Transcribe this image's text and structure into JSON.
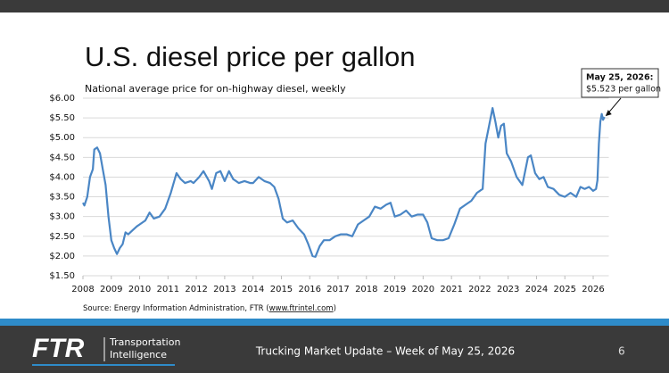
{
  "chart_data": {
    "type": "line",
    "title": "U.S. diesel price per gallon",
    "subtitle": "National average price for on-highway diesel, weekly",
    "source": "Source: Energy Information Administration, FTR (",
    "source_link": "www.ftrintel.com",
    "source_end": ")",
    "annotation": {
      "date": "May 25, 2026:",
      "text": "$5.523 per gallon",
      "x": 2026.4,
      "y": 5.523
    },
    "x": [
      2008.0,
      2008.05,
      2008.15,
      2008.25,
      2008.35,
      2008.4,
      2008.5,
      2008.6,
      2008.7,
      2008.8,
      2008.9,
      2009.0,
      2009.1,
      2009.2,
      2009.3,
      2009.4,
      2009.5,
      2009.6,
      2009.75,
      2009.9,
      2010.0,
      2010.2,
      2010.35,
      2010.5,
      2010.7,
      2010.9,
      2011.1,
      2011.3,
      2011.45,
      2011.6,
      2011.8,
      2011.9,
      2012.1,
      2012.25,
      2012.45,
      2012.55,
      2012.7,
      2012.85,
      2013.0,
      2013.15,
      2013.3,
      2013.5,
      2013.7,
      2013.9,
      2014.0,
      2014.2,
      2014.4,
      2014.6,
      2014.75,
      2014.9,
      2015.05,
      2015.2,
      2015.4,
      2015.6,
      2015.8,
      2015.95,
      2016.1,
      2016.2,
      2016.35,
      2016.5,
      2016.7,
      2016.9,
      2017.1,
      2017.3,
      2017.5,
      2017.7,
      2017.9,
      2018.1,
      2018.3,
      2018.5,
      2018.7,
      2018.85,
      2019.0,
      2019.2,
      2019.4,
      2019.6,
      2019.8,
      2020.0,
      2020.15,
      2020.3,
      2020.5,
      2020.7,
      2020.9,
      2021.1,
      2021.3,
      2021.5,
      2021.7,
      2021.9,
      2022.1,
      2022.2,
      2022.3,
      2022.45,
      2022.55,
      2022.65,
      2022.75,
      2022.85,
      2022.95,
      2023.1,
      2023.3,
      2023.5,
      2023.7,
      2023.8,
      2023.95,
      2024.1,
      2024.25,
      2024.4,
      2024.6,
      2024.8,
      2025.0,
      2025.2,
      2025.4,
      2025.55,
      2025.7,
      2025.85,
      2026.0,
      2026.1,
      2026.15,
      2026.2,
      2026.25,
      2026.3,
      2026.35,
      2026.4
    ],
    "series": [
      {
        "name": "Diesel price",
        "color": "#4a86c5",
        "values": [
          3.35,
          3.28,
          3.5,
          4.0,
          4.2,
          4.7,
          4.75,
          4.6,
          4.2,
          3.8,
          3.0,
          2.4,
          2.2,
          2.05,
          2.2,
          2.3,
          2.6,
          2.55,
          2.65,
          2.75,
          2.8,
          2.9,
          3.1,
          2.95,
          3.0,
          3.2,
          3.6,
          4.1,
          3.95,
          3.85,
          3.9,
          3.85,
          4.0,
          4.15,
          3.9,
          3.7,
          4.1,
          4.15,
          3.9,
          4.15,
          3.95,
          3.85,
          3.9,
          3.85,
          3.85,
          4.0,
          3.9,
          3.85,
          3.75,
          3.45,
          2.95,
          2.85,
          2.9,
          2.7,
          2.55,
          2.3,
          2.0,
          1.98,
          2.25,
          2.4,
          2.4,
          2.5,
          2.55,
          2.55,
          2.5,
          2.8,
          2.9,
          3.0,
          3.25,
          3.2,
          3.3,
          3.35,
          3.0,
          3.05,
          3.15,
          3.0,
          3.05,
          3.05,
          2.85,
          2.45,
          2.4,
          2.4,
          2.45,
          2.8,
          3.2,
          3.3,
          3.4,
          3.6,
          3.7,
          4.85,
          5.2,
          5.75,
          5.4,
          5.0,
          5.3,
          5.35,
          4.6,
          4.4,
          4.0,
          3.8,
          4.5,
          4.55,
          4.1,
          3.95,
          4.0,
          3.75,
          3.7,
          3.55,
          3.5,
          3.6,
          3.5,
          3.75,
          3.7,
          3.75,
          3.65,
          3.7,
          3.92,
          4.85,
          5.4,
          5.6,
          5.45,
          5.523
        ]
      }
    ],
    "xlim": [
      2008,
      2026.55
    ],
    "xticks": [
      2008,
      2009,
      2010,
      2011,
      2012,
      2013,
      2014,
      2015,
      2016,
      2017,
      2018,
      2019,
      2020,
      2021,
      2022,
      2023,
      2024,
      2025,
      2026
    ],
    "ylim": [
      1.5,
      6.0
    ],
    "yticks": [
      {
        "value": 1.5,
        "label": "$1.50"
      },
      {
        "value": 2.0,
        "label": "$2.00"
      },
      {
        "value": 2.5,
        "label": "$2.50"
      },
      {
        "value": 3.0,
        "label": "$3.00"
      },
      {
        "value": 3.5,
        "label": "$3.50"
      },
      {
        "value": 4.0,
        "label": "$4.00"
      },
      {
        "value": 4.5,
        "label": "$4.50"
      },
      {
        "value": 5.0,
        "label": "$5.00"
      },
      {
        "value": 5.5,
        "label": "$5.50"
      },
      {
        "value": 6.0,
        "label": "$6.00"
      }
    ],
    "grid": true
  },
  "footer": {
    "logo": "FTR",
    "tagline": [
      "Transportation",
      "Intelligence"
    ],
    "title": "Trucking Market Update – Week of May 25, 2026",
    "page": "6"
  }
}
